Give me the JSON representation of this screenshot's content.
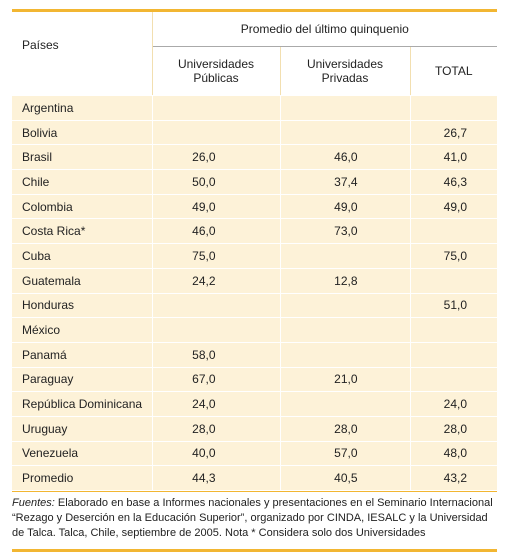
{
  "table": {
    "group_title": "Promedio del último quinquenio",
    "columns": [
      "Países",
      "Universidades Públicas",
      "Universidades Privadas",
      "TOTAL"
    ],
    "rows": [
      [
        "Argentina",
        null,
        null,
        null
      ],
      [
        "Bolivia",
        null,
        null,
        "26,7"
      ],
      [
        "Brasil",
        "26,0",
        "46,0",
        "41,0"
      ],
      [
        "Chile",
        "50,0",
        "37,4",
        "46,3"
      ],
      [
        "Colombia",
        "49,0",
        "49,0",
        "49,0"
      ],
      [
        "Costa Rica*",
        "46,0",
        "73,0",
        null
      ],
      [
        "Cuba",
        "75,0",
        null,
        "75,0"
      ],
      [
        "Guatemala",
        "24,2",
        "12,8",
        null
      ],
      [
        "Honduras",
        null,
        null,
        "51,0"
      ],
      [
        "México",
        null,
        null,
        null
      ],
      [
        "Panamá",
        "58,0",
        null,
        null
      ],
      [
        "Paraguay",
        "67,0",
        "21,0",
        null
      ],
      [
        "República Dominicana",
        "24,0",
        null,
        "24,0"
      ],
      [
        "Uruguay",
        "28,0",
        "28,0",
        "28,0"
      ],
      [
        "Venezuela",
        "40,0",
        "57,0",
        "48,0"
      ],
      [
        "Promedio",
        "44,3",
        "40,5",
        "43,2"
      ]
    ]
  },
  "footer": {
    "label": "Fuentes:",
    "text": "Elaborado en base a Informes nacionales y presentaciones en el Seminario Internacional “Rezago y Deserción en la Educación Superior”, organizado por CINDA, IESALC y la Universidad de Talca. Talca, Chile, septiembre de 2005. Nota * Considera solo dos Universidades"
  }
}
